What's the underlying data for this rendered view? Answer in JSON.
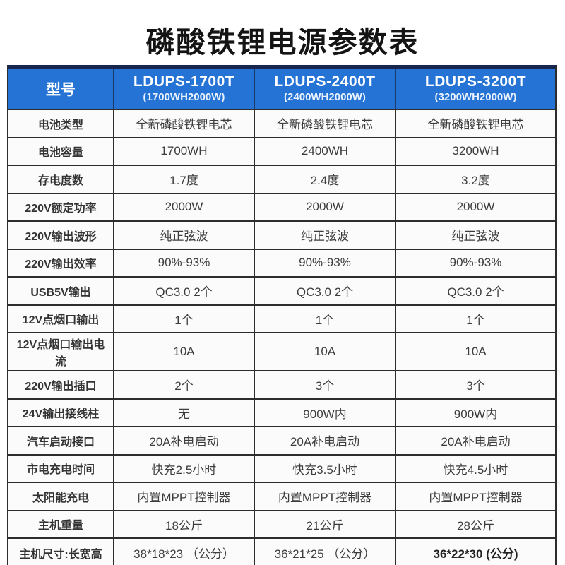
{
  "title": "磷酸铁锂电源参数表",
  "table": {
    "header": {
      "col0": "型号",
      "models": [
        {
          "name": "LDUPS-1700T",
          "subtitle": "(1700WH2000W)"
        },
        {
          "name": "LDUPS-2400T",
          "subtitle": "(2400WH2000W)"
        },
        {
          "name": "LDUPS-3200T",
          "subtitle": "(3200WH2000W)"
        }
      ]
    },
    "rows": [
      {
        "label": "电池类型",
        "values": [
          "全新磷酸铁锂电芯",
          "全新磷酸铁锂电芯",
          "全新磷酸铁锂电芯"
        ]
      },
      {
        "label": "电池容量",
        "values": [
          "1700WH",
          "2400WH",
          "3200WH"
        ]
      },
      {
        "label": "存电度数",
        "values": [
          "1.7度",
          "2.4度",
          "3.2度"
        ]
      },
      {
        "label": "220V额定功率",
        "values": [
          "2000W",
          "2000W",
          "2000W"
        ]
      },
      {
        "label": "220V输出波形",
        "values": [
          "纯正弦波",
          "纯正弦波",
          "纯正弦波"
        ]
      },
      {
        "label": "220V输出效率",
        "values": [
          "90%-93%",
          "90%-93%",
          "90%-93%"
        ]
      },
      {
        "label": "USB5V输出",
        "values": [
          "QC3.0 2个",
          "QC3.0 2个",
          "QC3.0 2个"
        ]
      },
      {
        "label": "12V点烟口输出",
        "values": [
          "1个",
          "1个",
          "1个"
        ]
      },
      {
        "label": "12V点烟口输出电流",
        "values": [
          "10A",
          "10A",
          "10A"
        ]
      },
      {
        "label": "220V输出插口",
        "values": [
          "2个",
          "3个",
          "3个"
        ]
      },
      {
        "label": "24V输出接线柱",
        "values": [
          "无",
          "900W内",
          "900W内"
        ]
      },
      {
        "label": "汽车启动接口",
        "values": [
          "20A补电启动",
          "20A补电启动",
          "20A补电启动"
        ]
      },
      {
        "label": "市电充电时间",
        "values": [
          "快充2.5小时",
          "快充3.5小时",
          "快充4.5小时"
        ]
      },
      {
        "label": "太阳能充电",
        "values": [
          "内置MPPT控制器",
          "内置MPPT控制器",
          "内置MPPT控制器"
        ]
      },
      {
        "label": "主机重量",
        "values": [
          "18公斤",
          "21公斤",
          "28公斤"
        ]
      },
      {
        "label": "主机尺寸:长宽高",
        "values": [
          "38*18*23 （公分）",
          "36*21*25 （公分）",
          "36*22*30 (公分)"
        ],
        "bold_last": true
      }
    ]
  },
  "colors": {
    "header_bg": "#2473d5",
    "table_border": "#2d2d2d",
    "table_top_border": "#16264e",
    "header_text": "#ffffff",
    "body_text": "#3c3c3c"
  }
}
